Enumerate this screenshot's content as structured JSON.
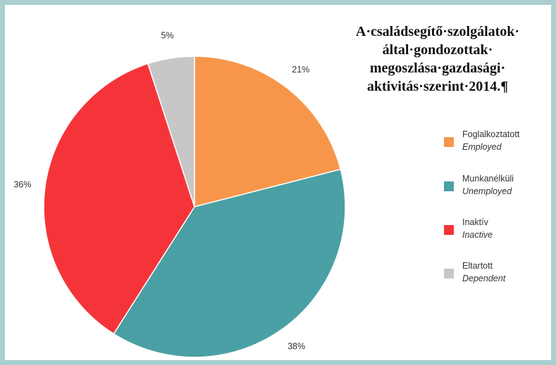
{
  "chart_data": {
    "type": "pie",
    "title": "A·családsegítő·szolgálatok· által·gondozottak· megoszlása·gazdasági· aktivitás·szerint·2014.¶",
    "title_lines": [
      "A·családsegítő·szolgálatok·",
      "által·gondozottak·",
      "megoszlása·gazdasági·",
      "aktivitás·szerint·2014.¶"
    ],
    "legend_placement": "right",
    "slices": [
      {
        "label": "Foglalkoztatott",
        "label_en": "Employed",
        "value": 21,
        "value_label": "21%",
        "color": "#f7964a"
      },
      {
        "label": "Munkanélküli",
        "label_en": "Unemployed",
        "value": 38,
        "value_label": "38%",
        "color": "#4aa0a4"
      },
      {
        "label": "Inaktív",
        "label_en": "Inactive",
        "value": 36,
        "value_label": "36%",
        "color": "#f53439"
      },
      {
        "label": "Eltartott",
        "label_en": "Dependent",
        "value": 5,
        "value_label": "5%",
        "color": "#c7c7c7"
      }
    ]
  }
}
